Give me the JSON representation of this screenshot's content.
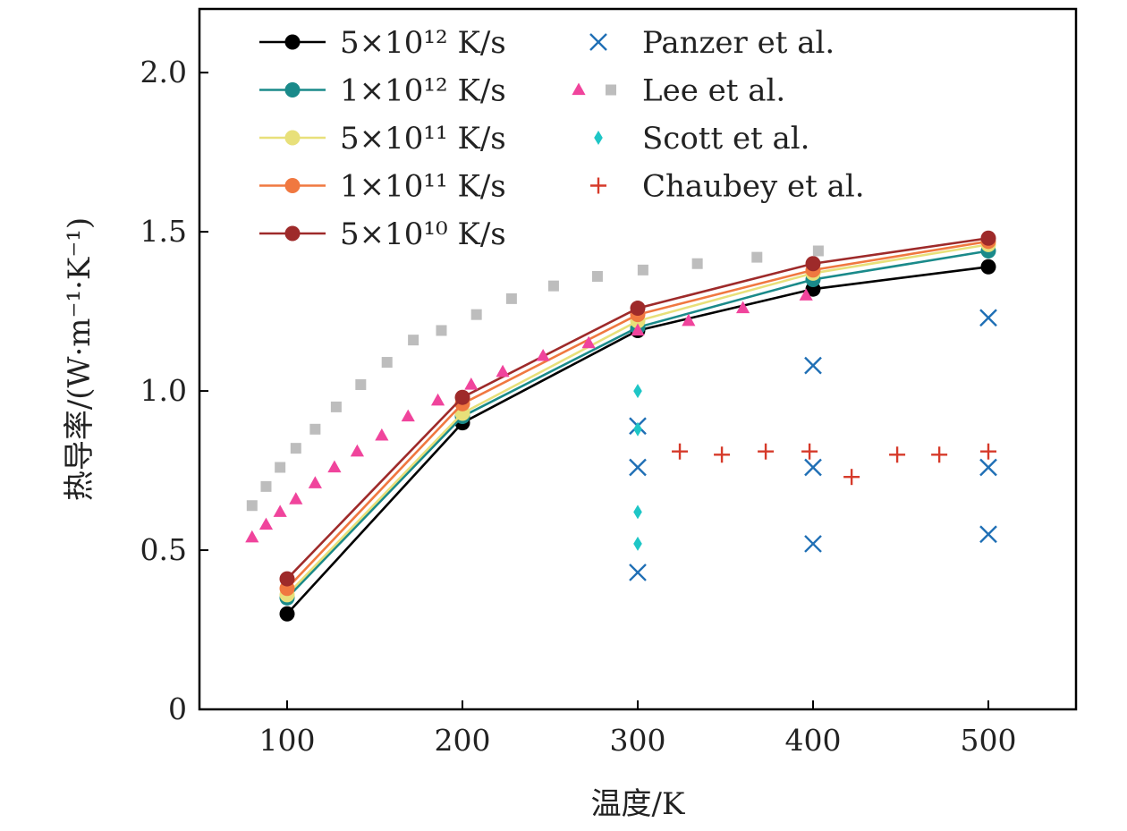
{
  "chart_data": {
    "type": "scatter",
    "xlabel": "温度/K",
    "ylabel": "热导率/(W·m⁻¹·K⁻¹)",
    "xlim": [
      50,
      550
    ],
    "ylim": [
      0,
      2.2
    ],
    "x_ticks": [
      100,
      200,
      300,
      400,
      500
    ],
    "x_tick_labels": [
      "100",
      "200",
      "300",
      "400",
      "500"
    ],
    "y_ticks": [
      0,
      0.5,
      1.0,
      1.5,
      2.0
    ],
    "y_tick_labels": [
      "0",
      "0.5",
      "1.0",
      "1.5",
      "2.0"
    ],
    "grid": false,
    "legend_placement": "top-left",
    "series": [
      {
        "name": "5×10¹² K/s",
        "kind": "line",
        "marker": "circle",
        "color": "#000000",
        "x": [
          100,
          200,
          300,
          400,
          500
        ],
        "y": [
          0.3,
          0.9,
          1.19,
          1.32,
          1.39
        ]
      },
      {
        "name": "1×10¹² K/s",
        "kind": "line",
        "marker": "circle",
        "color": "#1a8a8a",
        "x": [
          100,
          200,
          300,
          400,
          500
        ],
        "y": [
          0.35,
          0.92,
          1.2,
          1.35,
          1.44
        ]
      },
      {
        "name": "5×10¹¹ K/s",
        "kind": "line",
        "marker": "circle",
        "color": "#e8e07a",
        "x": [
          100,
          200,
          300,
          400,
          500
        ],
        "y": [
          0.36,
          0.93,
          1.22,
          1.37,
          1.46
        ]
      },
      {
        "name": "1×10¹¹ K/s",
        "kind": "line",
        "marker": "circle",
        "color": "#f07840",
        "x": [
          100,
          200,
          300,
          400,
          500
        ],
        "y": [
          0.38,
          0.96,
          1.24,
          1.38,
          1.47
        ]
      },
      {
        "name": "5×10¹⁰ K/s",
        "kind": "line",
        "marker": "circle",
        "color": "#9e2a2a",
        "x": [
          100,
          200,
          300,
          400,
          500
        ],
        "y": [
          0.41,
          0.98,
          1.26,
          1.4,
          1.48
        ]
      },
      {
        "name": "Panzer et al.",
        "kind": "scatter",
        "marker": "x",
        "color": "#1f6fb5",
        "x": [
          300,
          300,
          300,
          400,
          400,
          400,
          500,
          500,
          500
        ],
        "y": [
          0.89,
          0.76,
          0.43,
          1.08,
          0.76,
          0.52,
          1.23,
          0.76,
          0.55
        ]
      },
      {
        "name": "Lee et al.",
        "kind": "scatter",
        "marker": "triangle",
        "color": "#f0449c",
        "x": [
          80,
          88,
          96,
          105,
          116,
          127,
          140,
          154,
          169,
          186,
          205,
          223,
          246,
          272,
          300,
          329,
          360,
          396
        ],
        "y": [
          0.54,
          0.58,
          0.62,
          0.66,
          0.71,
          0.76,
          0.81,
          0.86,
          0.92,
          0.97,
          1.02,
          1.06,
          1.11,
          1.15,
          1.19,
          1.22,
          1.26,
          1.3
        ]
      },
      {
        "name": "",
        "kind": "scatter",
        "marker": "square",
        "color": "#bdbdbd",
        "x": [
          80,
          88,
          96,
          105,
          116,
          128,
          142,
          157,
          172,
          188,
          208,
          228,
          252,
          277,
          303,
          334,
          368,
          403
        ],
        "y": [
          0.64,
          0.7,
          0.76,
          0.82,
          0.88,
          0.95,
          1.02,
          1.09,
          1.16,
          1.19,
          1.24,
          1.29,
          1.33,
          1.36,
          1.38,
          1.4,
          1.42,
          1.44
        ]
      },
      {
        "name": "Scott et al.",
        "kind": "scatter",
        "marker": "diamond",
        "color": "#1ec6c6",
        "x": [
          300,
          300,
          300,
          300
        ],
        "y": [
          1.0,
          0.88,
          0.62,
          0.52
        ]
      },
      {
        "name": "Chaubey et al.",
        "kind": "scatter",
        "marker": "plus",
        "color": "#d63a2a",
        "x": [
          324,
          348,
          373,
          398,
          422,
          448,
          472,
          500
        ],
        "y": [
          0.81,
          0.8,
          0.81,
          0.81,
          0.73,
          0.8,
          0.8,
          0.81
        ]
      }
    ],
    "legend_left": [
      {
        "label": "5×10¹² K/s",
        "series": 0
      },
      {
        "label": "1×10¹² K/s",
        "series": 1
      },
      {
        "label": "5×10¹¹ K/s",
        "series": 2
      },
      {
        "label": "1×10¹¹ K/s",
        "series": 3
      },
      {
        "label": "5×10¹⁰ K/s",
        "series": 4
      }
    ],
    "legend_right": [
      {
        "label": "Panzer et al.",
        "markers": [
          "x"
        ],
        "colors": [
          "#1f6fb5"
        ]
      },
      {
        "label": "Lee et al.",
        "markers": [
          "triangle",
          "square"
        ],
        "colors": [
          "#f0449c",
          "#bdbdbd"
        ]
      },
      {
        "label": "Scott et al.",
        "markers": [
          "diamond"
        ],
        "colors": [
          "#1ec6c6"
        ]
      },
      {
        "label": "Chaubey et al.",
        "markers": [
          "plus"
        ],
        "colors": [
          "#d63a2a"
        ]
      }
    ]
  }
}
